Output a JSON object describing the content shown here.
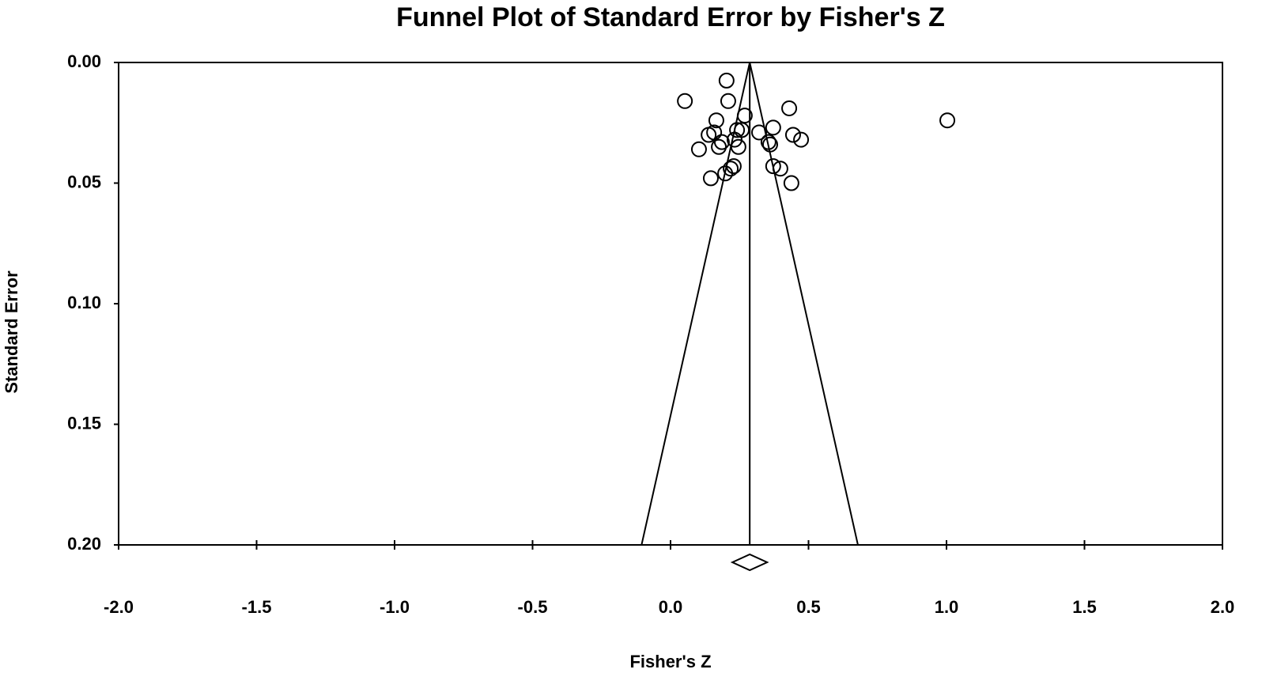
{
  "chart_data": {
    "type": "scatter",
    "title": "Funnel Plot of Standard Error by Fisher's Z",
    "x_label": "Fisher's Z",
    "y_label": "Standard Error",
    "x": [
      0.203,
      0.052,
      0.209,
      0.43,
      1.003,
      0.269,
      0.166,
      0.258,
      0.321,
      0.372,
      0.444,
      0.473,
      0.138,
      0.158,
      0.241,
      0.186,
      0.175,
      0.103,
      0.232,
      0.246,
      0.355,
      0.361,
      0.372,
      0.398,
      0.229,
      0.218,
      0.198,
      0.146,
      0.438
    ],
    "values": [
      0.0075,
      0.016,
      0.016,
      0.019,
      0.024,
      0.022,
      0.024,
      0.028,
      0.029,
      0.027,
      0.03,
      0.032,
      0.03,
      0.029,
      0.028,
      0.033,
      0.035,
      0.036,
      0.032,
      0.035,
      0.033,
      0.034,
      0.043,
      0.044,
      0.043,
      0.044,
      0.046,
      0.048,
      0.05
    ],
    "marker_color": "#000000",
    "summary": {
      "estimate": 0.287,
      "lower": 0.224,
      "upper": 0.35
    },
    "funnel": {
      "se": [
        0,
        0.2
      ],
      "x_lower": [
        0.287,
        -0.105
      ],
      "x_upper": [
        0.287,
        0.679
      ]
    },
    "xlim": [
      -2.0,
      2.0
    ],
    "xticks": [
      {
        "value": -2,
        "label": "-2.0"
      },
      {
        "value": -1.5,
        "label": "-1.5"
      },
      {
        "value": -1,
        "label": "-1.0"
      },
      {
        "value": -0.5,
        "label": "-0.5"
      },
      {
        "value": 0,
        "label": "0.0"
      },
      {
        "value": 0.5,
        "label": "0.5"
      },
      {
        "value": 1,
        "label": "1.0"
      },
      {
        "value": 1.5,
        "label": "1.5"
      },
      {
        "value": 2,
        "label": "2.0"
      }
    ],
    "ylim": [
      0,
      0.2
    ],
    "y_inverted": true,
    "yticks": [
      {
        "value": 0,
        "label": "0.00"
      },
      {
        "value": 0.05,
        "label": "0.05"
      },
      {
        "value": 0.1,
        "label": "0.10"
      },
      {
        "value": 0.15,
        "label": "0.15"
      },
      {
        "value": 0.2,
        "label": "0.20"
      }
    ]
  }
}
